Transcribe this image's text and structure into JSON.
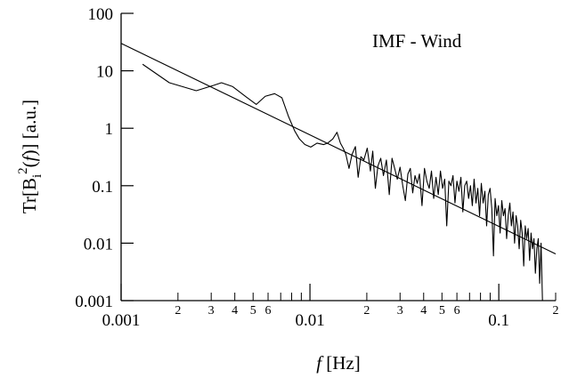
{
  "chart_data": {
    "type": "line",
    "title": "",
    "annotation": "IMF - Wind",
    "xlabel": {
      "var": "f",
      "unit": " [Hz]"
    },
    "ylabel": {
      "pre": "Tr[B",
      "sub": "i",
      "sup": "2",
      "mid": "(",
      "var": "f",
      "post": ")] [a.u.]"
    },
    "xscale": "log",
    "yscale": "log",
    "xlim": [
      0.001,
      0.2
    ],
    "ylim": [
      0.001,
      100
    ],
    "grid": false,
    "legend": "none",
    "x_major_ticks": [
      0.001,
      0.01,
      0.1
    ],
    "x_major_labels": [
      "0.001",
      "0.01",
      "0.1"
    ],
    "x_minor_ticks": [
      0.002,
      0.003,
      0.004,
      0.005,
      0.006,
      0.007,
      0.008,
      0.009,
      0.02,
      0.03,
      0.04,
      0.05,
      0.06,
      0.07,
      0.08,
      0.09,
      0.2
    ],
    "x_minor_labels": [
      "2",
      "3",
      "4",
      "5",
      "6",
      "",
      "",
      "",
      "2",
      "3",
      "4",
      "5",
      "6",
      "",
      "",
      "",
      "2"
    ],
    "y_major_ticks": [
      0.001,
      0.01,
      0.1,
      1,
      10,
      100
    ],
    "y_major_labels": [
      "0.001",
      "0.01",
      "0.1",
      "1",
      "10",
      "100"
    ],
    "series": [
      {
        "kind": "spectrum",
        "color": "#000000",
        "x": [
          0.0013,
          0.0018,
          0.0025,
          0.0031,
          0.0034,
          0.0039,
          0.0046,
          0.0052,
          0.0058,
          0.0065,
          0.0071,
          0.0077,
          0.0083,
          0.0088,
          0.0094,
          0.0101,
          0.0109,
          0.0118,
          0.0124,
          0.0132,
          0.0139,
          0.0145,
          0.015,
          0.0155,
          0.0161,
          0.0167,
          0.0174,
          0.018,
          0.0186,
          0.0193,
          0.0201,
          0.0209,
          0.0215,
          0.0222,
          0.0229,
          0.0237,
          0.0245,
          0.0254,
          0.0263,
          0.0272,
          0.0281,
          0.029,
          0.03,
          0.031,
          0.032,
          0.033,
          0.034,
          0.035,
          0.036,
          0.037,
          0.038,
          0.0392,
          0.0404,
          0.0416,
          0.0428,
          0.044,
          0.0452,
          0.0465,
          0.0478,
          0.0491,
          0.0504,
          0.0517,
          0.053,
          0.0544,
          0.0558,
          0.0572,
          0.0586,
          0.06,
          0.0615,
          0.063,
          0.0645,
          0.066,
          0.0676,
          0.0692,
          0.0708,
          0.0724,
          0.074,
          0.0757,
          0.0774,
          0.0791,
          0.0808,
          0.0826,
          0.0844,
          0.0862,
          0.088,
          0.0899,
          0.0918,
          0.0937,
          0.0956,
          0.0976,
          0.0996,
          0.1016,
          0.1037,
          0.1058,
          0.1079,
          0.11,
          0.1122,
          0.1144,
          0.1166,
          0.1189,
          0.1212,
          0.1235,
          0.1258,
          0.1282,
          0.1306,
          0.133,
          0.1355,
          0.138,
          0.1405,
          0.143,
          0.1456,
          0.1482,
          0.1508,
          0.1535,
          0.1562,
          0.159,
          0.1618,
          0.1646,
          0.1674,
          0.1703
        ],
        "y": [
          13,
          6.2,
          4.5,
          5.6,
          6.2,
          5.3,
          3.5,
          2.6,
          3.6,
          4.0,
          3.4,
          1.6,
          0.9,
          0.65,
          0.52,
          0.47,
          0.55,
          0.52,
          0.55,
          0.65,
          0.85,
          0.55,
          0.45,
          0.35,
          0.2,
          0.35,
          0.48,
          0.14,
          0.32,
          0.28,
          0.45,
          0.18,
          0.4,
          0.09,
          0.22,
          0.3,
          0.15,
          0.28,
          0.07,
          0.3,
          0.2,
          0.13,
          0.21,
          0.1,
          0.055,
          0.16,
          0.2,
          0.075,
          0.15,
          0.11,
          0.16,
          0.045,
          0.2,
          0.12,
          0.09,
          0.18,
          0.06,
          0.14,
          0.07,
          0.18,
          0.09,
          0.13,
          0.02,
          0.12,
          0.1,
          0.15,
          0.05,
          0.12,
          0.08,
          0.14,
          0.035,
          0.1,
          0.12,
          0.06,
          0.1,
          0.045,
          0.13,
          0.05,
          0.09,
          0.03,
          0.11,
          0.05,
          0.08,
          0.02,
          0.07,
          0.09,
          0.04,
          0.006,
          0.06,
          0.03,
          0.045,
          0.015,
          0.055,
          0.03,
          0.04,
          0.012,
          0.03,
          0.05,
          0.02,
          0.035,
          0.01,
          0.03,
          0.02,
          0.008,
          0.025,
          0.015,
          0.004,
          0.02,
          0.012,
          0.018,
          0.005,
          0.015,
          0.008,
          0.012,
          0.003,
          0.008,
          0.012,
          0.002,
          0.01,
          0.0004
        ]
      },
      {
        "kind": "fit",
        "color": "#000000",
        "x": [
          0.001,
          0.2
        ],
        "y": [
          30,
          0.0065
        ]
      }
    ]
  }
}
